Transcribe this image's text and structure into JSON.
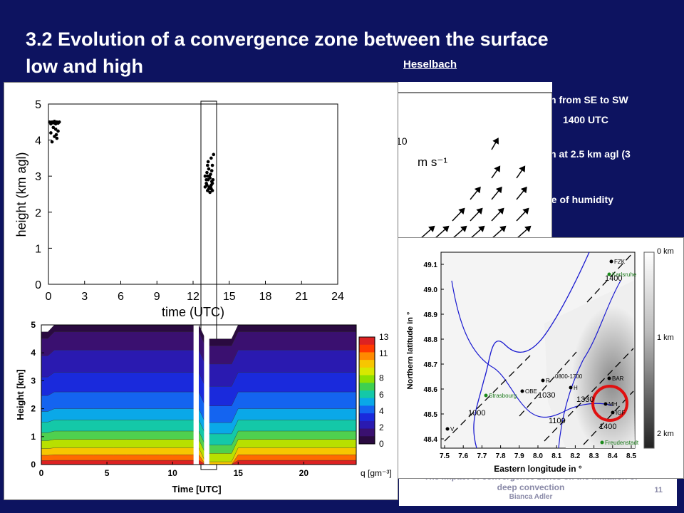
{
  "slide": {
    "title": "3.2 Evolution of a convergence zone between the surface low and high",
    "subtitle": "Heselbach",
    "page_number": "11",
    "footer_title": "The impact of convergence zones on the initiation of deep convection",
    "footer_author": "Bianca Adler"
  },
  "background_fragments": [
    "n from SE to SW",
    "1400 UTC",
    "n at 2.5 km agl (3",
    "se of humidity"
  ],
  "top_chart": {
    "xlabel": "time (UTC)",
    "ylabel": "height (km agl)",
    "x_ticks": [
      "0",
      "3",
      "6",
      "9",
      "12",
      "15",
      "18",
      "21",
      "24"
    ],
    "y_ticks": [
      "0",
      "1",
      "2",
      "3",
      "4",
      "5"
    ],
    "xlim": [
      0,
      24
    ],
    "ylim": [
      0,
      5
    ]
  },
  "humidity_chart": {
    "xlabel": "Time [UTC]",
    "ylabel": "Height [km]",
    "x_ticks": [
      "0",
      "5",
      "10",
      "15",
      "20"
    ],
    "y_ticks": [
      "0",
      "1",
      "2",
      "3",
      "4",
      "5"
    ],
    "colorbar_ticks": [
      "13",
      "11",
      "8",
      "6",
      "4",
      "2",
      "0"
    ],
    "colorbar_label": "q [gm⁻³]"
  },
  "map": {
    "xlabel": "Eastern longitude in °",
    "ylabel": "Northern latitude in °",
    "x_ticks": [
      "7.5",
      "7.6",
      "7.7",
      "7.8",
      "7.9",
      "8.0",
      "8.1",
      "8.2",
      "8.3",
      "8.4",
      "8.5"
    ],
    "y_ticks": [
      "49.1",
      "49.0",
      "48.9",
      "48.8",
      "48.7",
      "48.6",
      "48.5",
      "48.4"
    ],
    "legend": [
      "0 km",
      "1 km",
      "2 km"
    ],
    "places": [
      "FZK",
      "Karlsruhe",
      "Strasbourg",
      "Freudenstadt",
      "BAR",
      "MH",
      "IGF",
      "OBE",
      "R",
      "V",
      "H"
    ],
    "time_labels": [
      "1400",
      "1030",
      "1000",
      "1100",
      "1330",
      "1400",
      "0800-1700"
    ]
  },
  "wind_panel": {
    "label_value": "10",
    "label_unit": "m s⁻¹"
  },
  "chart_data": [
    {
      "type": "scatter",
      "title": "",
      "xlabel": "time (UTC)",
      "ylabel": "height (km agl)",
      "xlim": [
        0,
        24
      ],
      "ylim": [
        0,
        5
      ],
      "points": [
        [
          0.1,
          4.5
        ],
        [
          0.2,
          4.45
        ],
        [
          0.3,
          4.5
        ],
        [
          0.4,
          4.48
        ],
        [
          0.5,
          4.52
        ],
        [
          0.6,
          4.45
        ],
        [
          0.7,
          4.5
        ],
        [
          0.8,
          4.47
        ],
        [
          0.9,
          4.5
        ],
        [
          0.2,
          4.2
        ],
        [
          0.5,
          4.1
        ],
        [
          0.6,
          4.3
        ],
        [
          0.3,
          3.95
        ],
        [
          0.7,
          4.05
        ],
        [
          0.8,
          4.25
        ],
        [
          0.4,
          4.35
        ],
        [
          0.65,
          4.15
        ],
        [
          13.0,
          3.0
        ],
        [
          13.1,
          2.8
        ],
        [
          13.15,
          3.1
        ],
        [
          13.2,
          2.6
        ],
        [
          13.25,
          2.9
        ],
        [
          13.3,
          3.2
        ],
        [
          13.35,
          2.7
        ],
        [
          13.4,
          2.95
        ],
        [
          13.45,
          3.05
        ],
        [
          13.5,
          2.75
        ],
        [
          13.55,
          2.85
        ],
        [
          13.6,
          3.3
        ],
        [
          13.6,
          2.6
        ],
        [
          13.5,
          3.5
        ],
        [
          13.2,
          3.3
        ],
        [
          13.4,
          2.55
        ],
        [
          13.1,
          2.9
        ],
        [
          13.3,
          2.65
        ],
        [
          13.55,
          3.15
        ],
        [
          13.25,
          3.4
        ],
        [
          13.45,
          2.7
        ],
        [
          13.15,
          2.75
        ],
        [
          13.65,
          2.9
        ],
        [
          13.0,
          2.7
        ],
        [
          13.7,
          3.6
        ],
        [
          13.35,
          3.0
        ],
        [
          13.5,
          2.65
        ],
        [
          13.2,
          3.0
        ],
        [
          13.6,
          2.8
        ]
      ]
    },
    {
      "type": "heatmap",
      "title": "",
      "xlabel": "Time [UTC]",
      "ylabel": "Height [km]",
      "xlim": [
        0,
        24
      ],
      "ylim": [
        0,
        5
      ],
      "colorbar": {
        "label": "q [gm⁻³]",
        "range": [
          0,
          13
        ]
      },
      "levels": [
        {
          "q": 12,
          "top_km": 0.15
        },
        {
          "q": 10,
          "top_km": 0.35
        },
        {
          "q": 9,
          "top_km": 0.6
        },
        {
          "q": 8,
          "top_km": 0.9
        },
        {
          "q": 7,
          "top_km": 1.2
        },
        {
          "q": 6,
          "top_km": 1.6
        },
        {
          "q": 5,
          "top_km": 2.0
        },
        {
          "q": 4,
          "top_km": 2.6
        },
        {
          "q": 3,
          "top_km": 3.3
        },
        {
          "q": 2,
          "top_km": 4.1
        },
        {
          "q": 1,
          "top_km": 4.75
        },
        {
          "q": 0,
          "top_km": 5.0
        }
      ]
    }
  ]
}
